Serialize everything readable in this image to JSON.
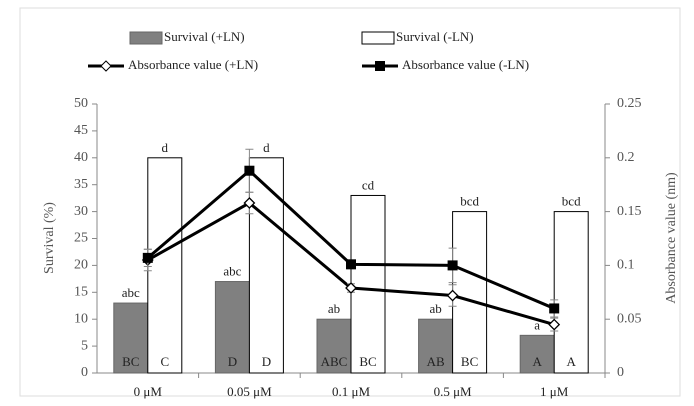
{
  "chart_data": {
    "type": "bar_line",
    "categories": [
      "0 μM",
      "0.05 μM",
      "0.1 μM",
      "0.5 μM",
      "1 μM"
    ],
    "ylabel": "Survival (%)",
    "y2label": "Absorbance value (nm)",
    "ylim": [
      0,
      50
    ],
    "yticks": [
      0,
      5,
      10,
      15,
      20,
      25,
      30,
      35,
      40,
      45,
      50
    ],
    "y2lim": [
      0,
      0.25
    ],
    "y2ticks": [
      0,
      0.05,
      0.1,
      0.15,
      0.2,
      0.25
    ],
    "series": [
      {
        "name": "Survival  (+LN)",
        "type": "bar",
        "color": "#808080",
        "values": [
          13,
          17,
          10,
          10,
          7
        ],
        "top_labels": [
          "abc",
          "abc",
          "ab",
          "ab",
          "a"
        ],
        "bottom_labels": [
          "BC",
          "D",
          "ABC",
          "AB",
          "A"
        ]
      },
      {
        "name": "Survival  (-LN)",
        "type": "bar",
        "color": "#ffffff",
        "values": [
          40,
          40,
          33,
          30,
          30
        ],
        "top_labels": [
          "d",
          "d",
          "cd",
          "bcd",
          "bcd"
        ],
        "bottom_labels": [
          "C",
          "D",
          "BC",
          "BC",
          "A"
        ]
      },
      {
        "name": "Absorbance value (+LN)",
        "type": "line",
        "axis": "y2",
        "color": "#000000",
        "marker": "diamond",
        "values": [
          0.105,
          0.158,
          0.079,
          0.072,
          0.045
        ],
        "errors": [
          0.01,
          0.01,
          0.004,
          0.01,
          0.006
        ]
      },
      {
        "name": "Absorbance value  (-LN)",
        "type": "line",
        "axis": "y2",
        "color": "#000000",
        "marker": "square",
        "values": [
          0.107,
          0.188,
          0.101,
          0.1,
          0.06
        ],
        "errors": [
          0.008,
          0.02,
          0.004,
          0.016,
          0.008
        ]
      }
    ]
  }
}
